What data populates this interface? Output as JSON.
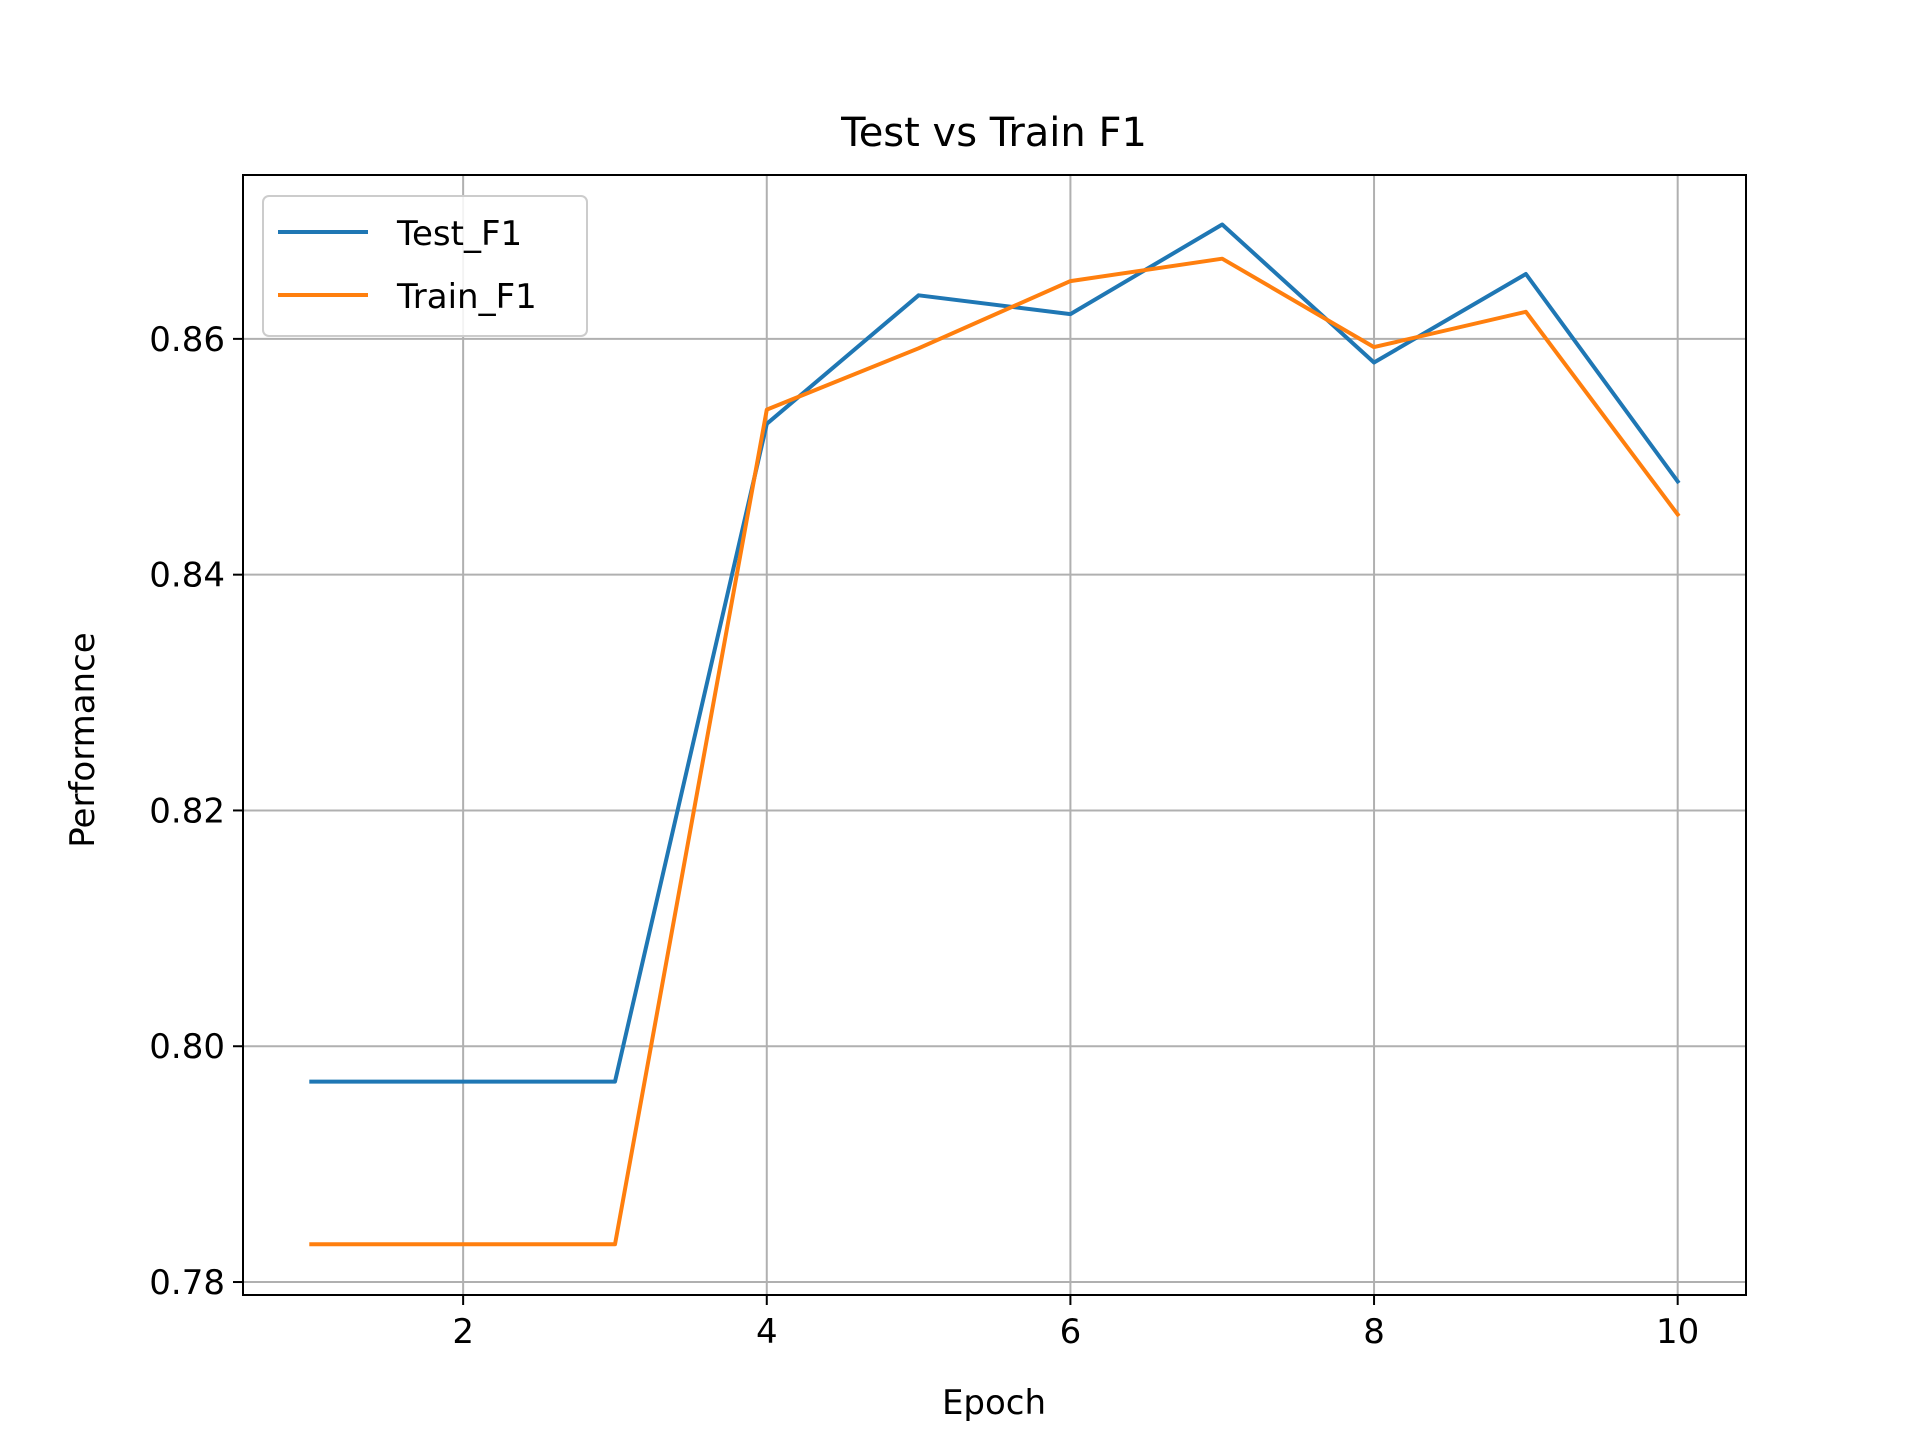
{
  "chart_data": {
    "type": "line",
    "title": "Test vs Train F1",
    "xlabel": "Epoch",
    "ylabel": "Performance",
    "x": [
      1,
      2,
      3,
      4,
      5,
      6,
      7,
      8,
      9,
      10
    ],
    "xlim": [
      0.55,
      10.45
    ],
    "ylim": [
      0.7789,
      0.8739
    ],
    "xticks": [
      2,
      4,
      6,
      8,
      10
    ],
    "xtick_labels": [
      "2",
      "4",
      "6",
      "8",
      "10"
    ],
    "yticks": [
      0.78,
      0.8,
      0.82,
      0.84,
      0.86
    ],
    "ytick_labels": [
      "0.78",
      "0.80",
      "0.82",
      "0.84",
      "0.86"
    ],
    "grid": true,
    "legend_position": "top-left",
    "series": [
      {
        "name": "Test_F1",
        "color": "#1f77b4",
        "values": [
          0.797,
          0.797,
          0.797,
          0.8528,
          0.8637,
          0.8621,
          0.8697,
          0.858,
          0.8655,
          0.8479
        ]
      },
      {
        "name": "Train_F1",
        "color": "#ff7f0e",
        "values": [
          0.7832,
          0.7832,
          0.7832,
          0.854,
          0.8592,
          0.8649,
          0.8668,
          0.8593,
          0.8623,
          0.8451
        ]
      }
    ]
  }
}
